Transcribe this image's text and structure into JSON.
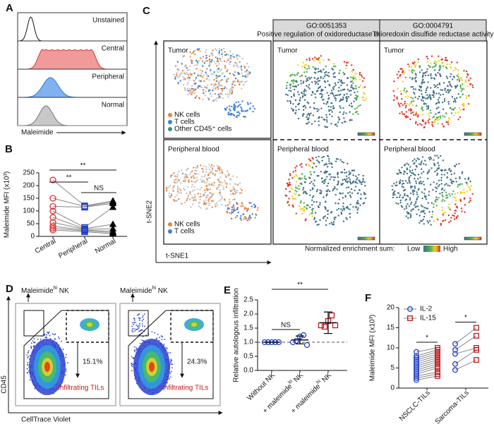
{
  "panels": {
    "A": {
      "letter": "A",
      "histograms": [
        "Unstained",
        "Central",
        "Peripheral",
        "Normal"
      ],
      "x_label": "Maleimide"
    },
    "C": {
      "letter": "C",
      "tumor_label": "Tumor",
      "blood_label": "Peripheral blood",
      "tumor_legend": [
        "NK cells",
        "T cells",
        "Other CD45⁺ cells"
      ],
      "blood_legend": [
        "NK cells",
        "T cells"
      ],
      "columns": [
        {
          "id": "GO:0051353",
          "name": "Positive regulation of oxidoreductase activity"
        },
        {
          "id": "GO:0004791",
          "name": "Thioredoxin disulfide reductase activity"
        }
      ],
      "y_axis": "t-SNE2",
      "x_axis": "t-SNE1",
      "scale_label": "Normalized enrichment sum:",
      "scale_low": "Low",
      "scale_high": "High"
    },
    "D": {
      "letter": "D",
      "gate_label": {
        "text": "Maleimide",
        "sup": "hi",
        "suffix": " NK"
      },
      "percents": [
        "15.1%",
        "24.3%"
      ],
      "til_label": "Infiltrating TILs",
      "y_axis": "CD45",
      "x_axis": "CellTrace Violet"
    }
  },
  "chart_data": [
    {
      "type": "paired",
      "letter": "B",
      "y_label": "Maleimide MFI (x10³)",
      "categories": [
        "Central",
        "Peripheral",
        "Normal"
      ],
      "colors": [
        "#e03030",
        "#2040c0",
        "#000000"
      ],
      "markers": [
        "circle",
        "square",
        "triangle"
      ],
      "values": [
        [
          222,
          150,
          118,
          100,
          75,
          55,
          40,
          32,
          25
        ],
        [
          120,
          118,
          115,
          35,
          30,
          28,
          25,
          22,
          18
        ],
        [
          140,
          135,
          130,
          115,
          48,
          30,
          20,
          15,
          10
        ]
      ],
      "ylim": [
        0,
        250
      ],
      "yticks": [
        0,
        50,
        100,
        150,
        200,
        250
      ],
      "annotations": [
        "**",
        "**",
        "NS"
      ]
    },
    {
      "type": "dot",
      "letter": "E",
      "y_label": "Relative autologous infiltration",
      "categories": [
        {
          "text": "Without NK"
        },
        {
          "text": "+ maleimide",
          "sup": "lo",
          "suffix": " NK"
        },
        {
          "text": "+ maleimide",
          "sup": "hi",
          "suffix": " NK"
        }
      ],
      "colors": [
        "#2040c0",
        "#2040c0",
        "#c0181c"
      ],
      "markers": [
        "circle",
        "circle",
        "square"
      ],
      "values": [
        [
          1,
          1,
          1,
          1,
          1
        ],
        [
          1.0,
          1.05,
          1.2,
          1.25,
          0.9
        ],
        [
          1.6,
          1.55,
          1.75,
          1.95,
          1.6
        ]
      ],
      "means": [
        1,
        1.08,
        1.69
      ],
      "errors": [
        0,
        0.14,
        0.38
      ],
      "hline": 1,
      "ylim": [
        0,
        2.5
      ],
      "yticks": [
        {
          "value": 0,
          "label": "0.0"
        },
        {
          "value": 0.5,
          "label": "0.5"
        },
        {
          "value": 1,
          "label": "1.0"
        },
        {
          "value": 1.5,
          "label": "1.5"
        },
        {
          "value": 2,
          "label": "2.0"
        },
        {
          "value": 2.5,
          "label": "2.5"
        }
      ],
      "annotations": [
        "NS",
        "**"
      ]
    },
    {
      "type": "paired_groups",
      "letter": "F",
      "y_label": "Maleimide MFI (x10³)",
      "categories": [
        "NSCLC-TILs",
        "Sarcoma-TILs"
      ],
      "series": [
        {
          "name": "IL-2",
          "color": "#2040c0",
          "marker": "circle",
          "values": [
            [
              9,
              8,
              7.5,
              7,
              6.5,
              6,
              5.5,
              5,
              4.5,
              4,
              3.5,
              3,
              2.5,
              2
            ],
            [
              11,
              9.5,
              8.5,
              6,
              4.5
            ]
          ]
        },
        {
          "name": "IL-15",
          "color": "#c0181c",
          "marker": "square",
          "values": [
            [
              10,
              9.5,
              9,
              8.5,
              8,
              7.5,
              7,
              6.5,
              6,
              5.5,
              5,
              4,
              3.5,
              3
            ],
            [
              15,
              13,
              10,
              9.5,
              7
            ]
          ]
        }
      ],
      "ylim": [
        0,
        20
      ],
      "yticks": [
        0,
        5,
        10,
        15,
        20
      ],
      "annotations": [
        "*",
        "*"
      ]
    }
  ]
}
